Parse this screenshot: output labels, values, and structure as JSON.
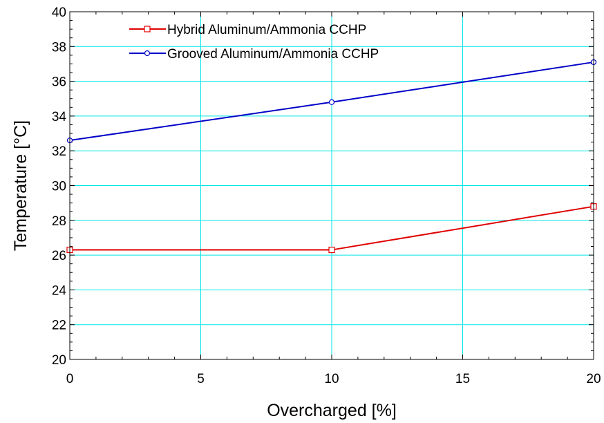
{
  "chart_data": {
    "type": "line",
    "title": "",
    "xlabel": "Overcharged [%]",
    "ylabel": "Temperature [°C]",
    "xlim": [
      0,
      20
    ],
    "ylim": [
      20,
      40
    ],
    "x_ticks": [
      0,
      5,
      10,
      15,
      20
    ],
    "x_tick_labels": [
      "0",
      "5",
      "10",
      "15",
      "20"
    ],
    "y_ticks": [
      20,
      22,
      24,
      26,
      28,
      30,
      32,
      34,
      36,
      38,
      40
    ],
    "y_tick_labels": [
      "20",
      "22",
      "24",
      "26",
      "28",
      "30",
      "32",
      "34",
      "36",
      "38",
      "40"
    ],
    "grid": true,
    "grid_color": "#00e5e5",
    "legend_position": "top-left",
    "series": [
      {
        "name": "Hybrid Aluminum/Ammonia CCHP",
        "color": "#e00000",
        "marker": "square",
        "x": [
          0,
          10,
          20
        ],
        "y": [
          26.3,
          26.3,
          28.8
        ]
      },
      {
        "name": "Grooved Aluminum/Ammonia CCHP",
        "color": "#0000c8",
        "marker": "circle",
        "x": [
          0,
          10,
          20
        ],
        "y": [
          32.6,
          34.8,
          37.1
        ]
      }
    ]
  }
}
